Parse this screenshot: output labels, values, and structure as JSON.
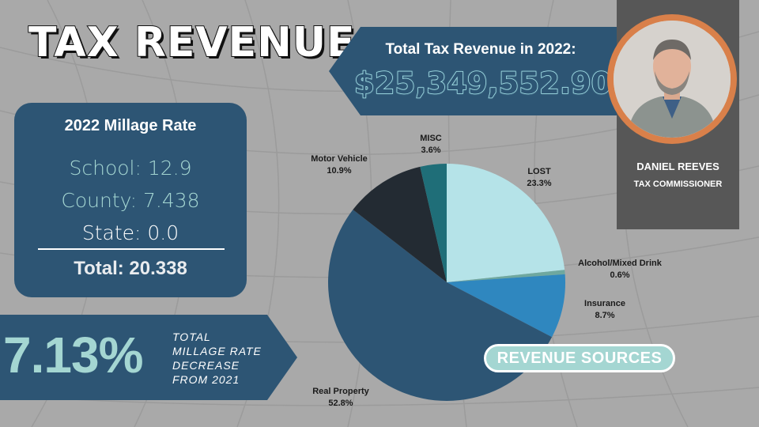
{
  "title": "TAX REVENUE",
  "total_revenue": {
    "label": "Total Tax Revenue in 2022:",
    "value": "$25,349,552.90"
  },
  "person": {
    "name": "DANIEL REEVES",
    "role": "TAX COMMISSIONER"
  },
  "millage": {
    "title": "2022 Millage Rate",
    "school": "School: 12.9",
    "county": "County: 7.438",
    "state": "State: 0.0",
    "total": "Total: 20.338"
  },
  "decrease": {
    "value": "7.13%",
    "text": "TOTAL MILLAGE RATE DECREASE FROM 2021"
  },
  "revenue_sources_label": "REVENUE SOURCES",
  "colors": {
    "navy": "#2d5574",
    "mint": "#a4d6d2",
    "orange": "#d9804a"
  },
  "chart_data": {
    "type": "pie",
    "title": "REVENUE SOURCES",
    "categories": [
      "LOST",
      "Alcohol/Mixed Drink",
      "Insurance",
      "Real Property",
      "Motor Vehicle",
      "MISC"
    ],
    "values": [
      23.3,
      0.6,
      8.7,
      52.8,
      10.9,
      3.6
    ],
    "labels": [
      "23.3%",
      "0.6%",
      "8.7%",
      "52.8%",
      "10.9%",
      "3.6%"
    ],
    "colors": [
      "#b5e3e8",
      "#6fa89f",
      "#2f87bf",
      "#2d5574",
      "#232b33",
      "#1f6e78"
    ],
    "units": "%"
  }
}
